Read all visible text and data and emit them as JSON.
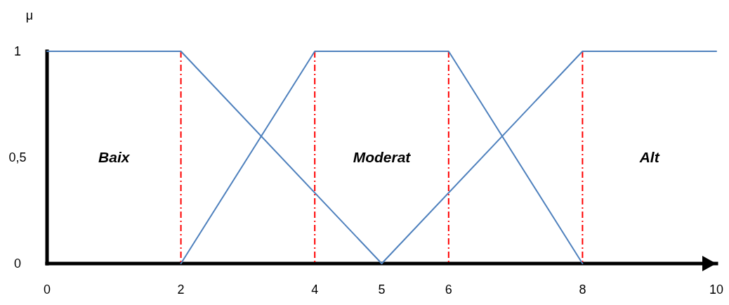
{
  "chart_data": {
    "type": "line",
    "ylabel": "μ",
    "xlim": [
      0,
      10
    ],
    "xticks": [
      0,
      2,
      4,
      5,
      6,
      8,
      10
    ],
    "ylim": [
      0,
      1
    ],
    "yticks": [
      0,
      {
        "value": 0.5,
        "label": "0,5"
      },
      1
    ],
    "series": [
      {
        "color": "#4f81bd",
        "x": [
          0,
          2,
          5
        ],
        "values": [
          1,
          1,
          0
        ]
      },
      {
        "color": "#4f81bd",
        "x": [
          2,
          4,
          6,
          8
        ],
        "values": [
          0,
          1,
          1,
          0
        ]
      },
      {
        "color": "#4f81bd",
        "x": [
          5,
          8,
          10
        ],
        "values": [
          0,
          1,
          1
        ]
      }
    ],
    "ref_lines": [
      {
        "axis": "x",
        "value": 2,
        "color": "#ff0000",
        "line_style": "dashed"
      },
      {
        "axis": "x",
        "value": 4,
        "color": "#ff0000",
        "line_style": "dashed"
      },
      {
        "axis": "x",
        "value": 6,
        "color": "#ff0000",
        "line_style": "dashed"
      },
      {
        "axis": "x",
        "value": 8,
        "color": "#ff0000",
        "line_style": "dashed"
      }
    ],
    "annotations": [
      "Baix",
      "Moderat",
      "Alt"
    ]
  }
}
